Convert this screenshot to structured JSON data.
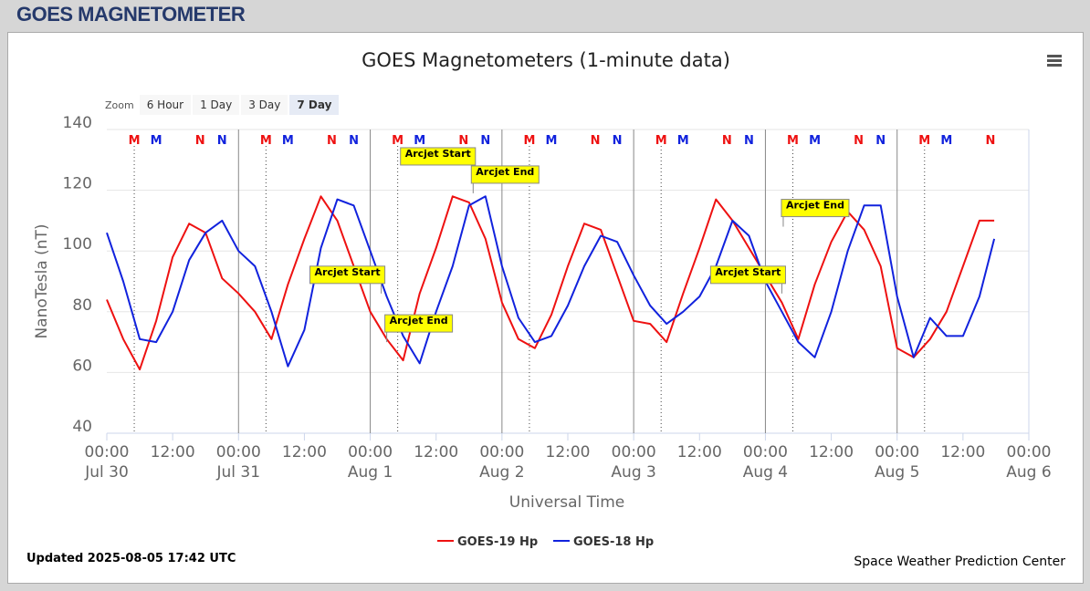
{
  "header": {
    "title": "GOES MAGNETOMETER"
  },
  "zoom": {
    "label": "Zoom",
    "buttons": [
      "6 Hour",
      "1 Day",
      "3 Day",
      "7 Day"
    ],
    "selected": 3
  },
  "chart_data": {
    "type": "line",
    "title": "GOES Magnetometers (1-minute data)",
    "y_label": "NanoTesla (nT)",
    "x_label": "Universal Time",
    "updated": "Updated 2025-08-05 17:42 UTC",
    "credit": "Space Weather Prediction Center",
    "grid": true,
    "ylim": [
      40,
      140
    ],
    "yticks": [
      40,
      60,
      80,
      100,
      120,
      140
    ],
    "xlim": [
      "07-30T00:00",
      "08-06T00:00"
    ],
    "xticks": [
      {
        "value": "07-30T00:00",
        "label": "00:00",
        "date": "Jul 30"
      },
      {
        "value": "07-30T12:00",
        "label": "12:00"
      },
      {
        "value": "07-31T00:00",
        "label": "00:00",
        "date": "Jul 31"
      },
      {
        "value": "07-31T12:00",
        "label": "12:00"
      },
      {
        "value": "08-01T00:00",
        "label": "00:00",
        "date": "Aug 1"
      },
      {
        "value": "08-01T12:00",
        "label": "12:00"
      },
      {
        "value": "08-02T00:00",
        "label": "00:00",
        "date": "Aug 2"
      },
      {
        "value": "08-02T12:00",
        "label": "12:00"
      },
      {
        "value": "08-03T00:00",
        "label": "00:00",
        "date": "Aug 3"
      },
      {
        "value": "08-03T12:00",
        "label": "12:00"
      },
      {
        "value": "08-04T00:00",
        "label": "00:00",
        "date": "Aug 4"
      },
      {
        "value": "08-04T12:00",
        "label": "12:00"
      },
      {
        "value": "08-05T00:00",
        "label": "00:00",
        "date": "Aug 5"
      },
      {
        "value": "08-05T12:00",
        "label": "12:00"
      },
      {
        "value": "08-06T00:00",
        "label": "00:00",
        "date": "Aug 6"
      }
    ],
    "x": [
      "07-30T00:00",
      "07-30T03:00",
      "07-30T06:00",
      "07-30T09:00",
      "07-30T12:00",
      "07-30T15:00",
      "07-30T18:00",
      "07-30T21:00",
      "07-31T00:00",
      "07-31T03:00",
      "07-31T06:00",
      "07-31T09:00",
      "07-31T12:00",
      "07-31T15:00",
      "07-31T18:00",
      "07-31T21:00",
      "08-01T00:00",
      "08-01T03:00",
      "08-01T06:00",
      "08-01T09:00",
      "08-01T12:00",
      "08-01T15:00",
      "08-01T18:00",
      "08-01T21:00",
      "08-02T00:00",
      "08-02T03:00",
      "08-02T06:00",
      "08-02T09:00",
      "08-02T12:00",
      "08-02T15:00",
      "08-02T18:00",
      "08-02T21:00",
      "08-03T00:00",
      "08-03T03:00",
      "08-03T06:00",
      "08-03T09:00",
      "08-03T12:00",
      "08-03T15:00",
      "08-03T18:00",
      "08-03T21:00",
      "08-04T00:00",
      "08-04T03:00",
      "08-04T06:00",
      "08-04T09:00",
      "08-04T12:00",
      "08-04T15:00",
      "08-04T18:00",
      "08-04T21:00",
      "08-05T00:00",
      "08-05T03:00",
      "08-05T06:00",
      "08-05T09:00",
      "08-05T12:00",
      "08-05T15:00",
      "08-05T17:42"
    ],
    "series": [
      {
        "name": "GOES-19 Hp",
        "color": "#ee1111",
        "values": [
          84,
          71,
          61,
          77,
          98,
          109,
          106,
          91,
          86,
          80,
          71,
          89,
          104,
          118,
          110,
          95,
          80,
          71,
          64,
          86,
          101,
          118,
          116,
          104,
          83,
          71,
          68,
          79,
          95,
          109,
          107,
          92,
          77,
          76,
          70,
          86,
          101,
          117,
          110,
          101,
          92,
          83,
          71,
          89,
          103,
          113,
          107,
          95,
          68,
          65,
          71,
          80,
          95,
          110,
          110
        ]
      },
      {
        "name": "GOES-18 Hp",
        "color": "#1122dd",
        "values": [
          106,
          90,
          71,
          70,
          80,
          97,
          106,
          110,
          100,
          95,
          80,
          62,
          74,
          101,
          117,
          115,
          100,
          85,
          72,
          63,
          80,
          95,
          115,
          118,
          95,
          78,
          70,
          72,
          82,
          95,
          105,
          103,
          92,
          82,
          76,
          80,
          85,
          95,
          110,
          105,
          90,
          80,
          70,
          65,
          80,
          100,
          115,
          115,
          85,
          65,
          78,
          72,
          72,
          85,
          104
        ]
      }
    ],
    "markers": [
      {
        "label": "M",
        "x": "07-30T05:00",
        "series": 0,
        "line": true
      },
      {
        "label": "M",
        "x": "07-30T09:00",
        "series": 1
      },
      {
        "label": "N",
        "x": "07-30T17:00",
        "series": 0
      },
      {
        "label": "N",
        "x": "07-30T21:00",
        "series": 1
      },
      {
        "label": "M",
        "x": "07-31T05:00",
        "series": 0,
        "line": true
      },
      {
        "label": "M",
        "x": "07-31T09:00",
        "series": 1
      },
      {
        "label": "N",
        "x": "07-31T17:00",
        "series": 0
      },
      {
        "label": "N",
        "x": "07-31T21:00",
        "series": 1
      },
      {
        "label": "M",
        "x": "08-01T05:00",
        "series": 0,
        "line": true
      },
      {
        "label": "M",
        "x": "08-01T09:00",
        "series": 1
      },
      {
        "label": "N",
        "x": "08-01T17:00",
        "series": 0
      },
      {
        "label": "N",
        "x": "08-01T21:00",
        "series": 1
      },
      {
        "label": "M",
        "x": "08-02T05:00",
        "series": 0,
        "line": true
      },
      {
        "label": "M",
        "x": "08-02T09:00",
        "series": 1
      },
      {
        "label": "N",
        "x": "08-02T17:00",
        "series": 0
      },
      {
        "label": "N",
        "x": "08-02T21:00",
        "series": 1
      },
      {
        "label": "M",
        "x": "08-03T05:00",
        "series": 0,
        "line": true
      },
      {
        "label": "M",
        "x": "08-03T09:00",
        "series": 1
      },
      {
        "label": "N",
        "x": "08-03T17:00",
        "series": 0
      },
      {
        "label": "N",
        "x": "08-03T21:00",
        "series": 1
      },
      {
        "label": "M",
        "x": "08-04T05:00",
        "series": 0,
        "line": true
      },
      {
        "label": "M",
        "x": "08-04T09:00",
        "series": 1
      },
      {
        "label": "N",
        "x": "08-04T17:00",
        "series": 0
      },
      {
        "label": "N",
        "x": "08-04T21:00",
        "series": 1
      },
      {
        "label": "M",
        "x": "08-05T05:00",
        "series": 0,
        "line": true
      },
      {
        "label": "M",
        "x": "08-05T09:00",
        "series": 1
      },
      {
        "label": "N",
        "x": "08-05T17:00",
        "series": 0
      }
    ],
    "annotations": [
      {
        "text": "Arcjet Start",
        "x": "08-01T02:00",
        "y": 86,
        "side": "left"
      },
      {
        "text": "Arcjet End",
        "x": "08-01T03:00",
        "y": 70,
        "side": "right"
      },
      {
        "text": "Arcjet Start",
        "x": "08-01T18:30",
        "y": 125,
        "side": "left"
      },
      {
        "text": "Arcjet End",
        "x": "08-01T18:45",
        "y": 119,
        "side": "right"
      },
      {
        "text": "Arcjet Start",
        "x": "08-04T03:00",
        "y": 86,
        "side": "left"
      },
      {
        "text": "Arcjet End",
        "x": "08-04T03:15",
        "y": 108,
        "side": "right"
      }
    ]
  }
}
